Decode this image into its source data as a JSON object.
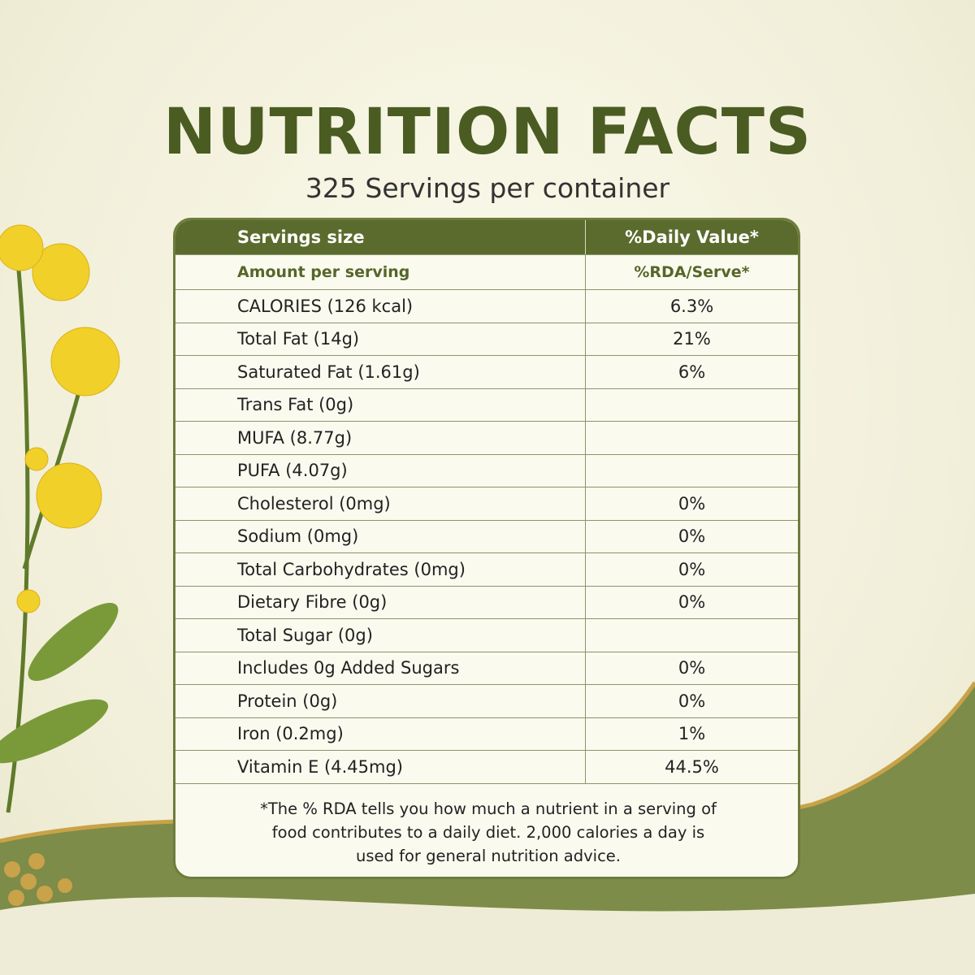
{
  "header": {
    "title": "NUTRITION FACTS",
    "subtitle": "325 Servings per container"
  },
  "table": {
    "columns": [
      "Servings size",
      "%Daily Value*"
    ],
    "subheader": [
      "Amount per serving",
      "%RDA/Serve*"
    ],
    "rows": [
      {
        "name": "CALORIES (126 kcal)",
        "value": "6.3%"
      },
      {
        "name": "Total Fat (14g)",
        "value": "21%"
      },
      {
        "name": "Saturated Fat (1.61g)",
        "value": "6%"
      },
      {
        "name": "Trans Fat (0g)"
      },
      {
        "name": "MUFA (8.77g)"
      },
      {
        "name": "PUFA (4.07g)"
      },
      {
        "name": "Cholesterol (0mg)",
        "value": "0%"
      },
      {
        "name": "Sodium (0mg)",
        "value": "0%"
      },
      {
        "name": "Total Carbohydrates (0mg)",
        "value": "0%"
      },
      {
        "name": "Dietary Fibre (0g)",
        "value": "0%"
      },
      {
        "name": "Total Sugar (0g)"
      },
      {
        "name": "Includes 0g Added Sugars",
        "value": "0%"
      },
      {
        "name": "Protein (0g)",
        "value": "0%"
      },
      {
        "name": "Iron (0.2mg)",
        "value": "1%"
      },
      {
        "name": "Vitamin E (4.45mg)",
        "value": "44.5%"
      }
    ],
    "footnote": "*The % RDA tells you how much a nutrient in a serving of food contributes to a daily diet. 2,000 calories a day is used for general nutrition advice."
  }
}
